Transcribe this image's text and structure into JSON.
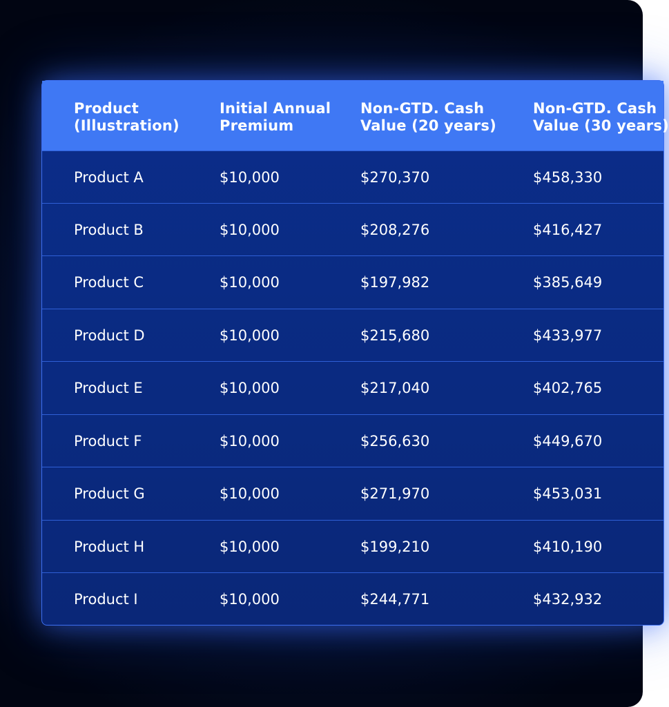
{
  "table": {
    "headers": [
      [
        "Product",
        "(Illustration)"
      ],
      [
        "Initial Annual",
        "Premium"
      ],
      [
        "Non-GTD. Cash",
        "Value (20 years)"
      ],
      [
        "Non-GTD. Cash",
        "Value (30 years)"
      ]
    ],
    "rows": [
      [
        "Product A",
        "$10,000",
        "$270,370",
        "$458,330"
      ],
      [
        "Product B",
        "$10,000",
        "$208,276",
        "$416,427"
      ],
      [
        "Product C",
        "$10,000",
        "$197,982",
        "$385,649"
      ],
      [
        "Product D",
        "$10,000",
        "$215,680",
        "$433,977"
      ],
      [
        "Product E",
        "$10,000",
        "$217,040",
        "$402,765"
      ],
      [
        "Product F",
        "$10,000",
        "$256,630",
        "$449,670"
      ],
      [
        "Product G",
        "$10,000",
        "$271,970",
        "$453,031"
      ],
      [
        "Product H",
        "$10,000",
        "$199,210",
        "$410,190"
      ],
      [
        "Product I",
        "$10,000",
        "$244,771",
        "$432,932"
      ]
    ]
  },
  "colors": {
    "header_bg": "#3f78f4",
    "body_bg": "#0a2a80",
    "border": "#3d6ff0",
    "page_bg": "#030a1f"
  }
}
